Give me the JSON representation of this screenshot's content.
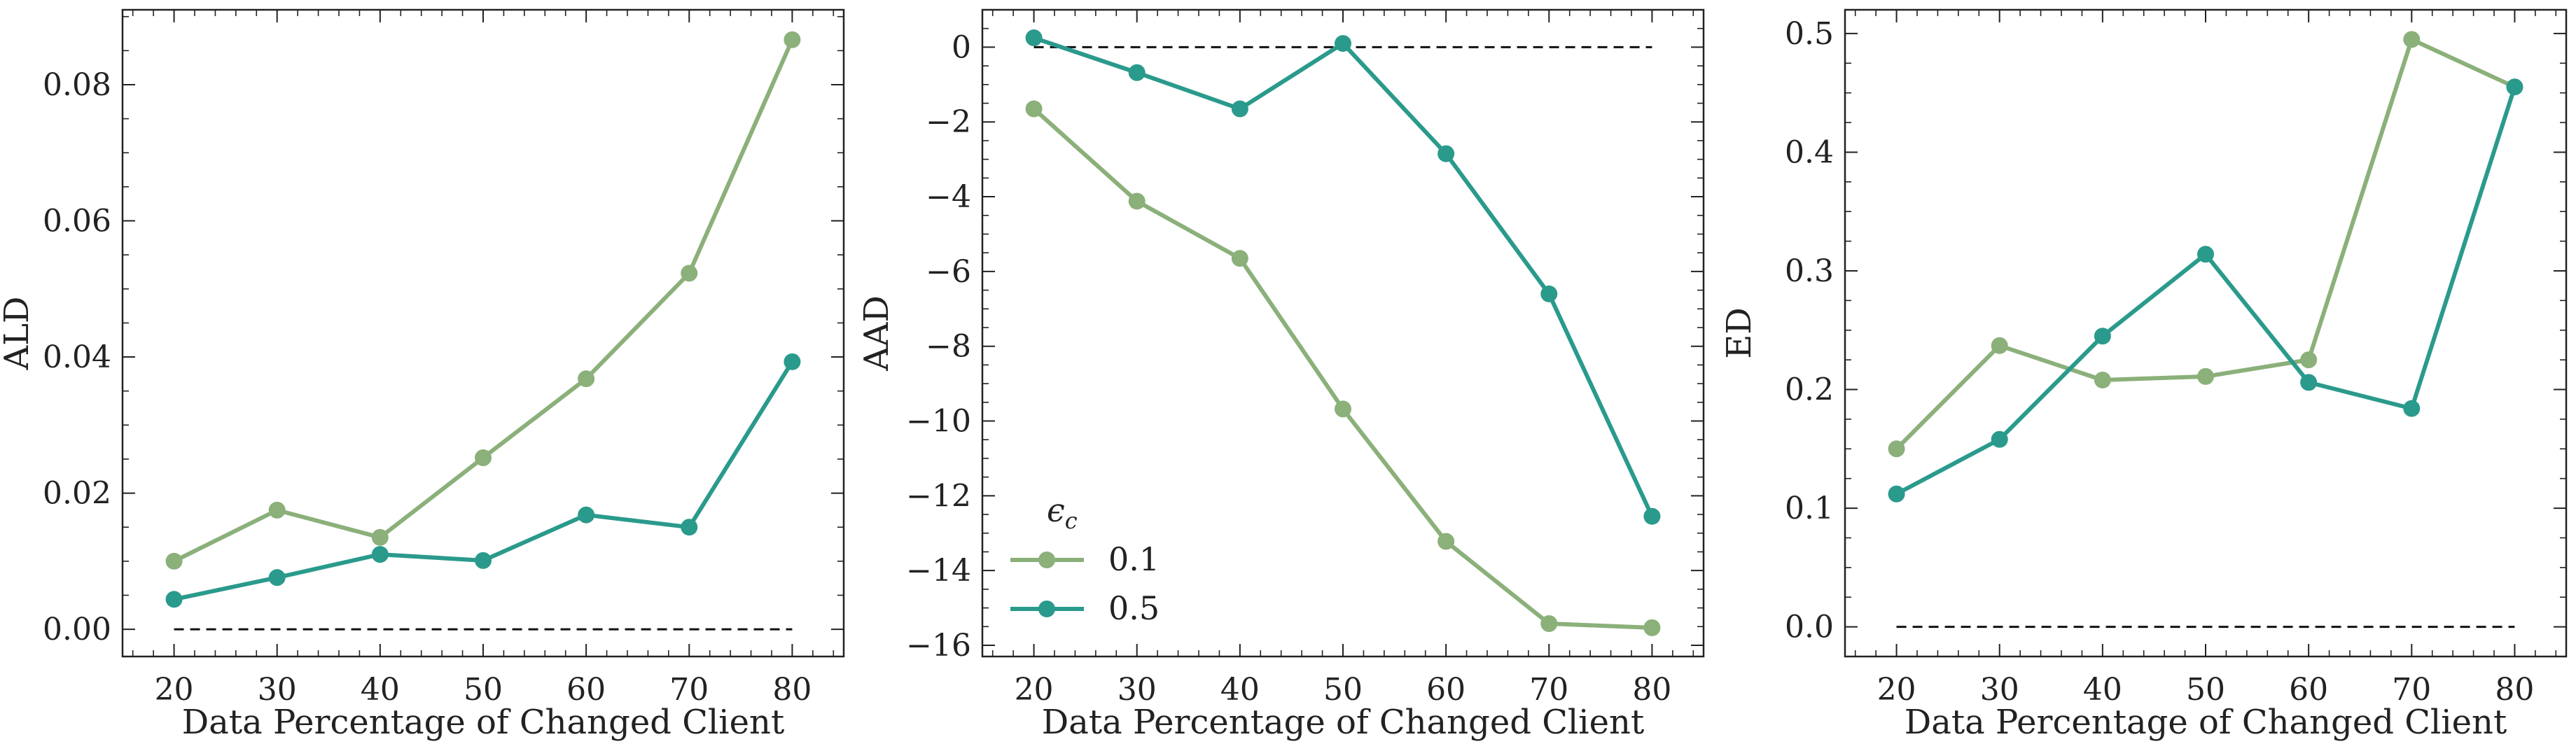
{
  "chart_data": [
    {
      "type": "line",
      "xlabel": "Data Percentage of Changed Client",
      "ylabel": "ALD",
      "x": [
        20,
        30,
        40,
        50,
        60,
        70,
        80
      ],
      "xticks": [
        "20",
        "30",
        "40",
        "50",
        "60",
        "70",
        "80"
      ],
      "xlim": [
        15,
        85
      ],
      "ylim": [
        -0.004,
        0.091
      ],
      "yticks": [
        "0.00",
        "0.02",
        "0.04",
        "0.06",
        "0.08"
      ],
      "ytick_values": [
        0,
        0.02,
        0.04,
        0.06,
        0.08
      ],
      "baseline": 0,
      "series": [
        {
          "name": "0.1",
          "color": "#8BB07A",
          "values": [
            0.01,
            0.0175,
            0.0135,
            0.0252,
            0.0368,
            0.0523,
            0.0866
          ]
        },
        {
          "name": "0.5",
          "color": "#2A9A8C",
          "values": [
            0.0044,
            0.0076,
            0.011,
            0.0101,
            0.0168,
            0.015,
            0.0393
          ]
        }
      ]
    },
    {
      "type": "line",
      "xlabel": "Data Percentage of Changed Client",
      "ylabel": "AAD",
      "x": [
        20,
        30,
        40,
        50,
        60,
        70,
        80
      ],
      "xticks": [
        "20",
        "30",
        "40",
        "50",
        "60",
        "70",
        "80"
      ],
      "xlim": [
        15,
        85
      ],
      "ylim": [
        -16.3,
        1.0
      ],
      "yticks": [
        "0",
        "−2",
        "−4",
        "−6",
        "−8",
        "−10",
        "−12",
        "−14",
        "−16"
      ],
      "ytick_values": [
        0,
        -2,
        -4,
        -6,
        -8,
        -10,
        -12,
        -14,
        -16
      ],
      "baseline": 0,
      "legend": {
        "title": "ϵ",
        "title_sub": "c",
        "position": "lower-left",
        "entries": [
          "0.1",
          "0.5"
        ]
      },
      "series": [
        {
          "name": "0.1",
          "color": "#8BB07A",
          "values": [
            -1.65,
            -4.12,
            -5.65,
            -9.68,
            -13.22,
            -15.42,
            -15.53
          ]
        },
        {
          "name": "0.5",
          "color": "#2A9A8C",
          "values": [
            0.25,
            -0.68,
            -1.65,
            0.1,
            -2.85,
            -6.6,
            -12.55
          ]
        }
      ]
    },
    {
      "type": "line",
      "xlabel": "Data Percentage of Changed Client",
      "ylabel": "ED",
      "x": [
        20,
        30,
        40,
        50,
        60,
        70,
        80
      ],
      "xticks": [
        "20",
        "30",
        "40",
        "50",
        "60",
        "70",
        "80"
      ],
      "xlim": [
        15,
        85
      ],
      "ylim": [
        -0.025,
        0.52
      ],
      "yticks": [
        "0.0",
        "0.1",
        "0.2",
        "0.3",
        "0.4",
        "0.5"
      ],
      "ytick_values": [
        0,
        0.1,
        0.2,
        0.3,
        0.4,
        0.5
      ],
      "baseline": 0,
      "series": [
        {
          "name": "0.1",
          "color": "#8BB07A",
          "values": [
            0.15,
            0.237,
            0.208,
            0.211,
            0.225,
            0.495,
            0.455
          ]
        },
        {
          "name": "0.5",
          "color": "#2A9A8C",
          "values": [
            0.112,
            0.158,
            0.245,
            0.314,
            0.206,
            0.184,
            0.455
          ]
        }
      ]
    }
  ]
}
